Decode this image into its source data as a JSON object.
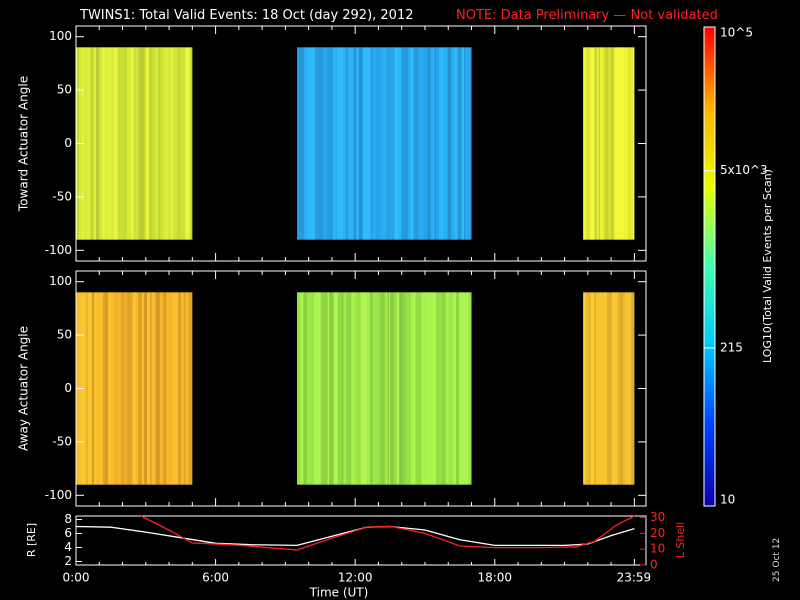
{
  "title": "TWINS1: Total Valid Events: 18 Oct (day 292), 2012",
  "note": "NOTE: Data Preliminary — Not validated",
  "date_stamp": "25 Oct 12",
  "chart_data": [
    {
      "type": "heatmap",
      "panel": "toward",
      "ylabel": "Toward Actuator Angle",
      "ylim": [
        -110,
        110
      ],
      "yticks": [
        100,
        50,
        0,
        -50,
        -100
      ],
      "data_y_range": [
        -90,
        90
      ],
      "x_range_hours": [
        0,
        24.5
      ],
      "segments": [
        {
          "start_hour": 0.0,
          "end_hour": 5.0,
          "level": "medium-high",
          "color": "#d4e83a"
        },
        {
          "start_hour": 9.5,
          "end_hour": 17.0,
          "level": "medium",
          "color": "#2aa8ef"
        },
        {
          "start_hour": 21.8,
          "end_hour": 24.0,
          "level": "medium-high",
          "color": "#e5ee36"
        }
      ]
    },
    {
      "type": "heatmap",
      "panel": "away",
      "ylabel": "Away Actuator Angle",
      "ylim": [
        -110,
        110
      ],
      "yticks": [
        100,
        50,
        0,
        -50,
        -100
      ],
      "data_y_range": [
        -90,
        90
      ],
      "x_range_hours": [
        0,
        24.5
      ],
      "segments": [
        {
          "start_hour": 0.0,
          "end_hour": 5.0,
          "level": "high",
          "color": "#f2b22c"
        },
        {
          "start_hour": 9.5,
          "end_hour": 17.0,
          "level": "medium",
          "color": "#9ee84a"
        },
        {
          "start_hour": 21.8,
          "end_hour": 24.0,
          "level": "high",
          "color": "#f4c030"
        }
      ]
    },
    {
      "type": "line",
      "panel": "orbit",
      "ylabel_left": "R [RE]",
      "ylabel_right": "L Shell",
      "yticks_left": [
        8,
        6,
        4,
        2
      ],
      "yticks_right": [
        30,
        20,
        10,
        0
      ],
      "ylim_left": [
        1.5,
        8.5
      ],
      "ylim_right": [
        0,
        31
      ],
      "xlabel": "Time (UT)",
      "xtick_labels": [
        "0:00",
        "6:00",
        "12:00",
        "18:00",
        "23:59"
      ],
      "xtick_hours": [
        0,
        6,
        12,
        18,
        23.98
      ],
      "series": [
        {
          "name": "R",
          "color": "#ffffff",
          "axis": "left",
          "x": [
            0,
            1.5,
            3,
            4.5,
            6,
            7.5,
            9.5,
            11,
            12.5,
            13.5,
            15,
            16.5,
            18,
            19.5,
            21,
            22,
            23,
            24
          ],
          "y": [
            7.0,
            6.9,
            6.2,
            5.4,
            4.6,
            4.4,
            4.3,
            5.6,
            6.9,
            7.0,
            6.5,
            5.1,
            4.3,
            4.3,
            4.3,
            4.5,
            5.7,
            6.7
          ]
        },
        {
          "name": "L Shell",
          "color": "#ff2020",
          "axis": "right",
          "x": [
            2.8,
            4,
            5,
            7,
            9.5,
            11,
            12.5,
            13.5,
            15,
            16.5,
            18,
            20,
            21.5,
            22.3,
            23.2,
            24
          ],
          "y": [
            31,
            22,
            14,
            12.5,
            9.5,
            17,
            24,
            24.5,
            20,
            12,
            11,
            11,
            11.5,
            15,
            25,
            31
          ]
        }
      ]
    }
  ],
  "colorbar": {
    "label": "LOG10(Total Valid Events per Scan)",
    "ticks": [
      {
        "label": "10",
        "frac": 0.0
      },
      {
        "label": "215",
        "frac": 0.33
      },
      {
        "label": "5x10^3",
        "frac": 0.7
      },
      {
        "label": "10^5",
        "frac": 1.0
      }
    ],
    "colors": [
      "#0c00a8",
      "#0040ff",
      "#00c8ff",
      "#40ffb0",
      "#e8ff00",
      "#ffb000",
      "#ff0000"
    ]
  }
}
